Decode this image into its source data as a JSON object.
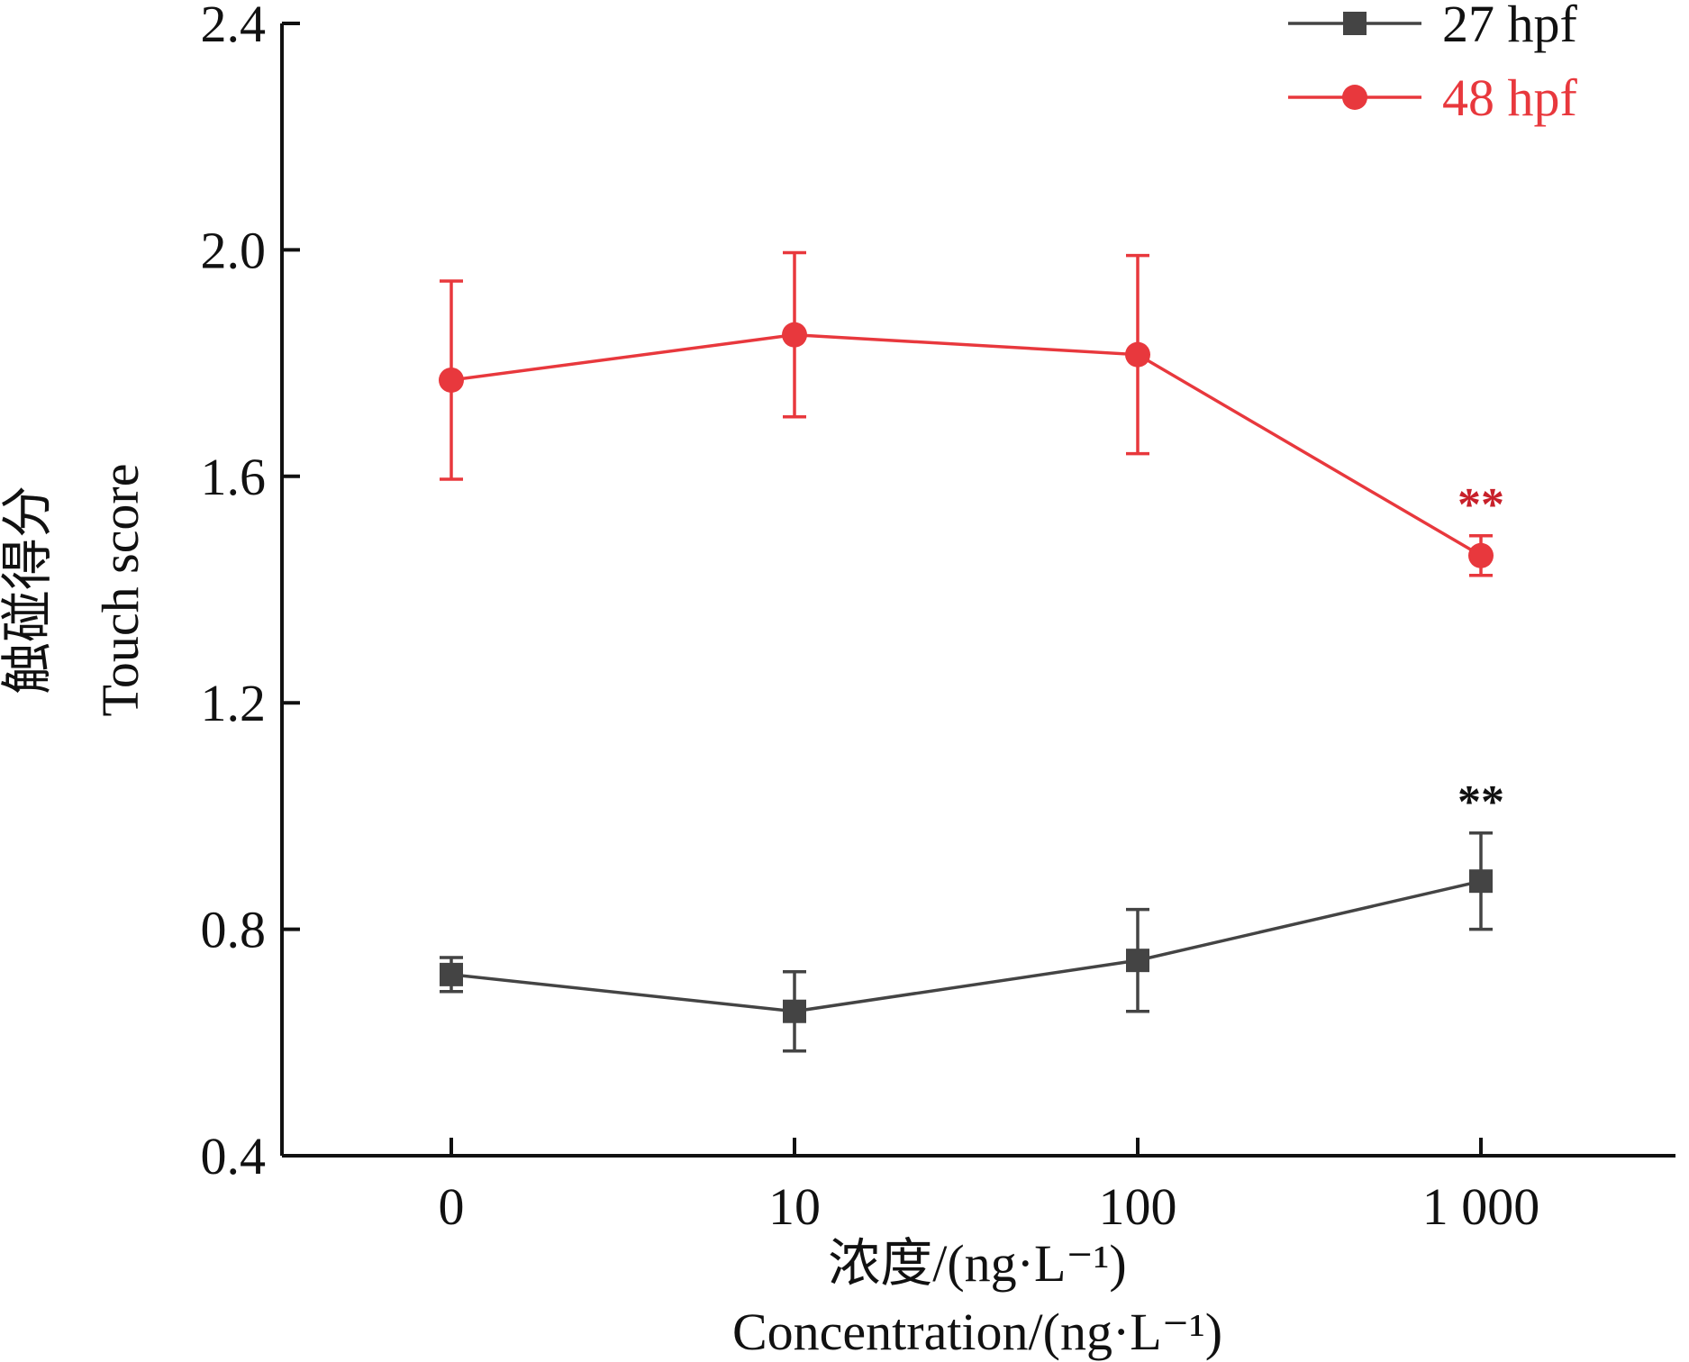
{
  "chart_data": {
    "type": "line",
    "categories": [
      "0",
      "10",
      "100",
      "1 000"
    ],
    "xlabel_cn": "浓度/(ng·L⁻¹)",
    "xlabel_en": "Concentration/(ng·L⁻¹)",
    "ylabel_cn": "触碰得分",
    "ylabel_en": "Touch score",
    "ylim": [
      0.4,
      2.4
    ],
    "yticks": [
      "0.4",
      "0.8",
      "1.2",
      "1.6",
      "2.0",
      "2.4"
    ],
    "grid": false,
    "legend_position": "top-right",
    "series": [
      {
        "name": "27 hpf",
        "color": "#444444",
        "marker": "square",
        "values": [
          0.72,
          0.655,
          0.745,
          0.885
        ],
        "errors": [
          0.03,
          0.07,
          0.09,
          0.085
        ],
        "significance": [
          "",
          "",
          "",
          "**"
        ]
      },
      {
        "name": "48 hpf",
        "color": "#e8383d",
        "marker": "circle",
        "values": [
          1.77,
          1.85,
          1.815,
          1.46
        ],
        "errors": [
          0.175,
          0.145,
          0.175,
          0.035
        ],
        "significance": [
          "",
          "",
          "",
          "**"
        ]
      }
    ]
  }
}
